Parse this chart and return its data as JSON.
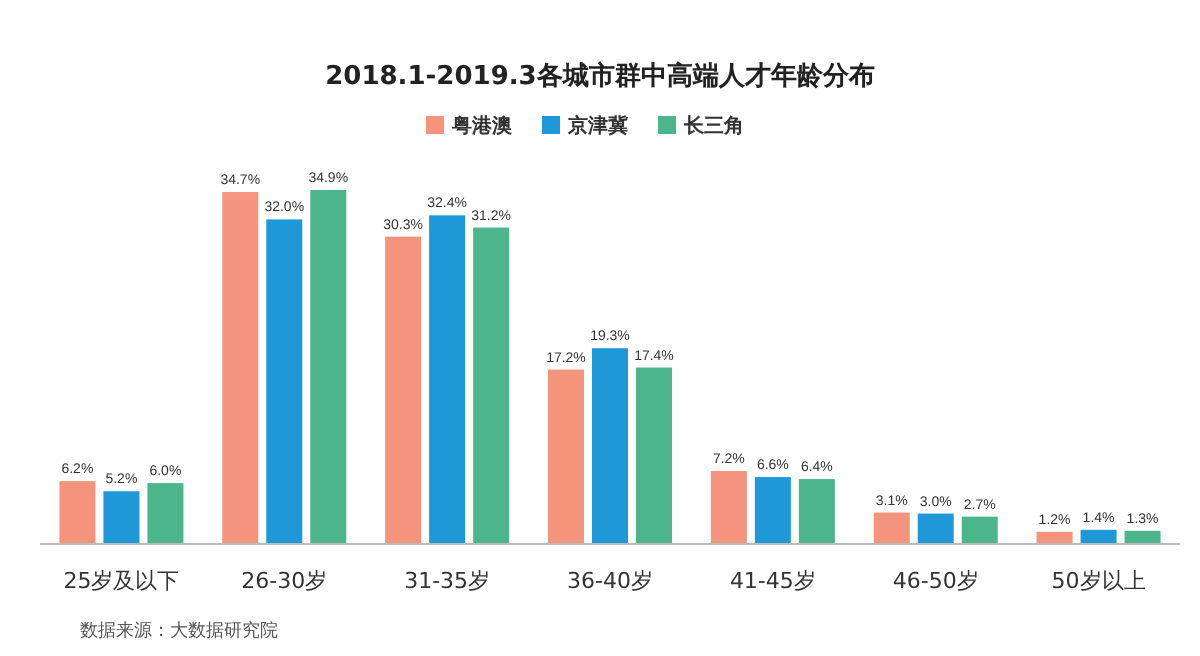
{
  "chart_data": {
    "type": "bar",
    "title": "2018.1-2019.3各城市群中高端人才年龄分布",
    "categories": [
      "25岁及以下",
      "26-30岁",
      "31-35岁",
      "36-40岁",
      "41-45岁",
      "46-50岁",
      "50岁以上"
    ],
    "series": [
      {
        "name": "粤港澳",
        "color": "#f4947c",
        "values": [
          6.2,
          34.7,
          30.3,
          17.2,
          7.2,
          3.1,
          1.2
        ],
        "value_labels": [
          "6.2%",
          "34.7%",
          "30.3%",
          "17.2%",
          "7.2%",
          "3.1%",
          "1.2%"
        ]
      },
      {
        "name": "京津冀",
        "color": "#1f98d8",
        "values": [
          5.2,
          32.0,
          32.4,
          19.3,
          6.6,
          3.0,
          1.4
        ],
        "value_labels": [
          "5.2%",
          "32.0%",
          "32.4%",
          "19.3%",
          "6.6%",
          "3.0%",
          "1.4%"
        ]
      },
      {
        "name": "长三角",
        "color": "#4db58b",
        "values": [
          6.0,
          34.9,
          31.2,
          17.4,
          6.4,
          2.7,
          1.3
        ],
        "value_labels": [
          "6.0%",
          "34.9%",
          "31.2%",
          "17.4%",
          "6.4%",
          "2.7%",
          "1.3%"
        ]
      }
    ],
    "legend": "top",
    "annotations": [
      "数据来源：大数据研究院"
    ]
  }
}
